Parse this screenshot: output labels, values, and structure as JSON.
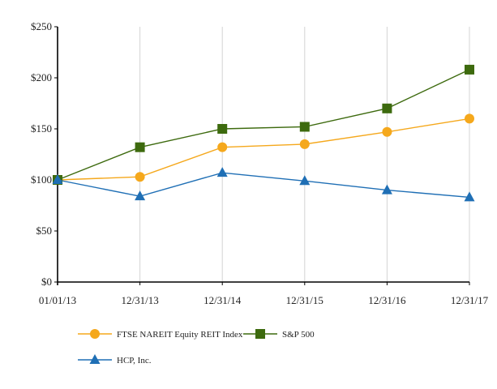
{
  "chart_data": {
    "type": "line",
    "categories": [
      "01/01/13",
      "12/31/13",
      "12/31/14",
      "12/31/15",
      "12/31/16",
      "12/31/17"
    ],
    "ylim": [
      0,
      250
    ],
    "yticks": [
      0,
      50,
      100,
      150,
      200,
      250
    ],
    "ytick_labels": [
      "$0",
      "$50",
      "$100",
      "$150",
      "$200",
      "$250"
    ],
    "grid": "vertical",
    "legend_position": "bottom",
    "series": [
      {
        "name": "FTSE NAREIT Equity REIT Index",
        "color": "#f5a81c",
        "marker": "circle",
        "values": [
          100,
          103,
          132,
          135,
          147,
          160
        ]
      },
      {
        "name": "S&P 500",
        "color": "#3d6a0e",
        "marker": "square",
        "values": [
          100,
          132,
          150,
          152,
          170,
          208
        ]
      },
      {
        "name": "HCP, Inc.",
        "color": "#1f6fb5",
        "marker": "triangle",
        "values": [
          100,
          84,
          107,
          99,
          90,
          83
        ]
      }
    ]
  }
}
